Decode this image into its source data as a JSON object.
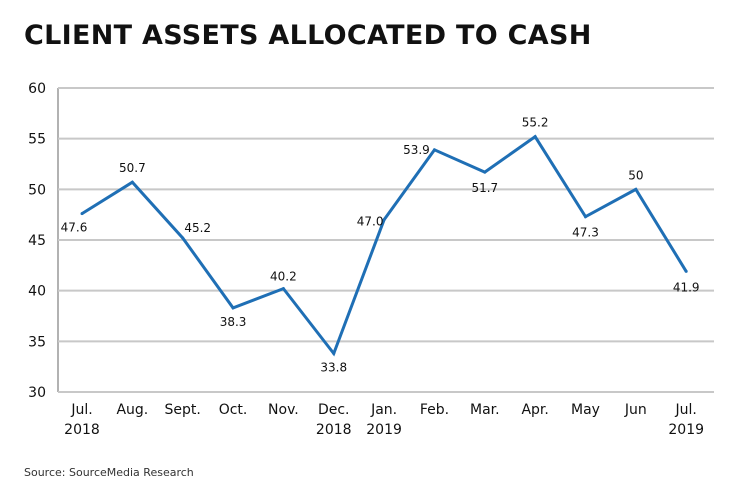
{
  "chart_data": {
    "type": "line",
    "title": "CLIENT ASSETS ALLOCATED TO CASH",
    "source": "Source: SourceMedia Research",
    "categories": [
      [
        "Jul.",
        "2018"
      ],
      [
        "Aug.",
        ""
      ],
      [
        "Sept.",
        ""
      ],
      [
        "Oct.",
        ""
      ],
      [
        "Nov.",
        ""
      ],
      [
        "Dec.",
        "2018"
      ],
      [
        "Jan.",
        "2019"
      ],
      [
        "Feb.",
        ""
      ],
      [
        "Mar.",
        ""
      ],
      [
        "Apr.",
        ""
      ],
      [
        "May",
        ""
      ],
      [
        "Jun",
        ""
      ],
      [
        "Jul.",
        "2019"
      ]
    ],
    "values": [
      47.6,
      50.7,
      45.2,
      38.3,
      40.2,
      33.8,
      47.0,
      53.9,
      51.7,
      55.2,
      47.3,
      50,
      41.9
    ],
    "data_labels": [
      "47.6",
      "50.7",
      "45.2",
      "38.3",
      "40.2",
      "33.8",
      "47.0",
      "53.9",
      "51.7",
      "55.2",
      "47.3",
      "50",
      "41.9"
    ],
    "ylim": [
      30,
      60
    ],
    "yticks": [
      30,
      35,
      40,
      45,
      50,
      55,
      60
    ],
    "grid": true,
    "line_color": "#1f6fb5",
    "grid_color": "#c8c8c8"
  }
}
